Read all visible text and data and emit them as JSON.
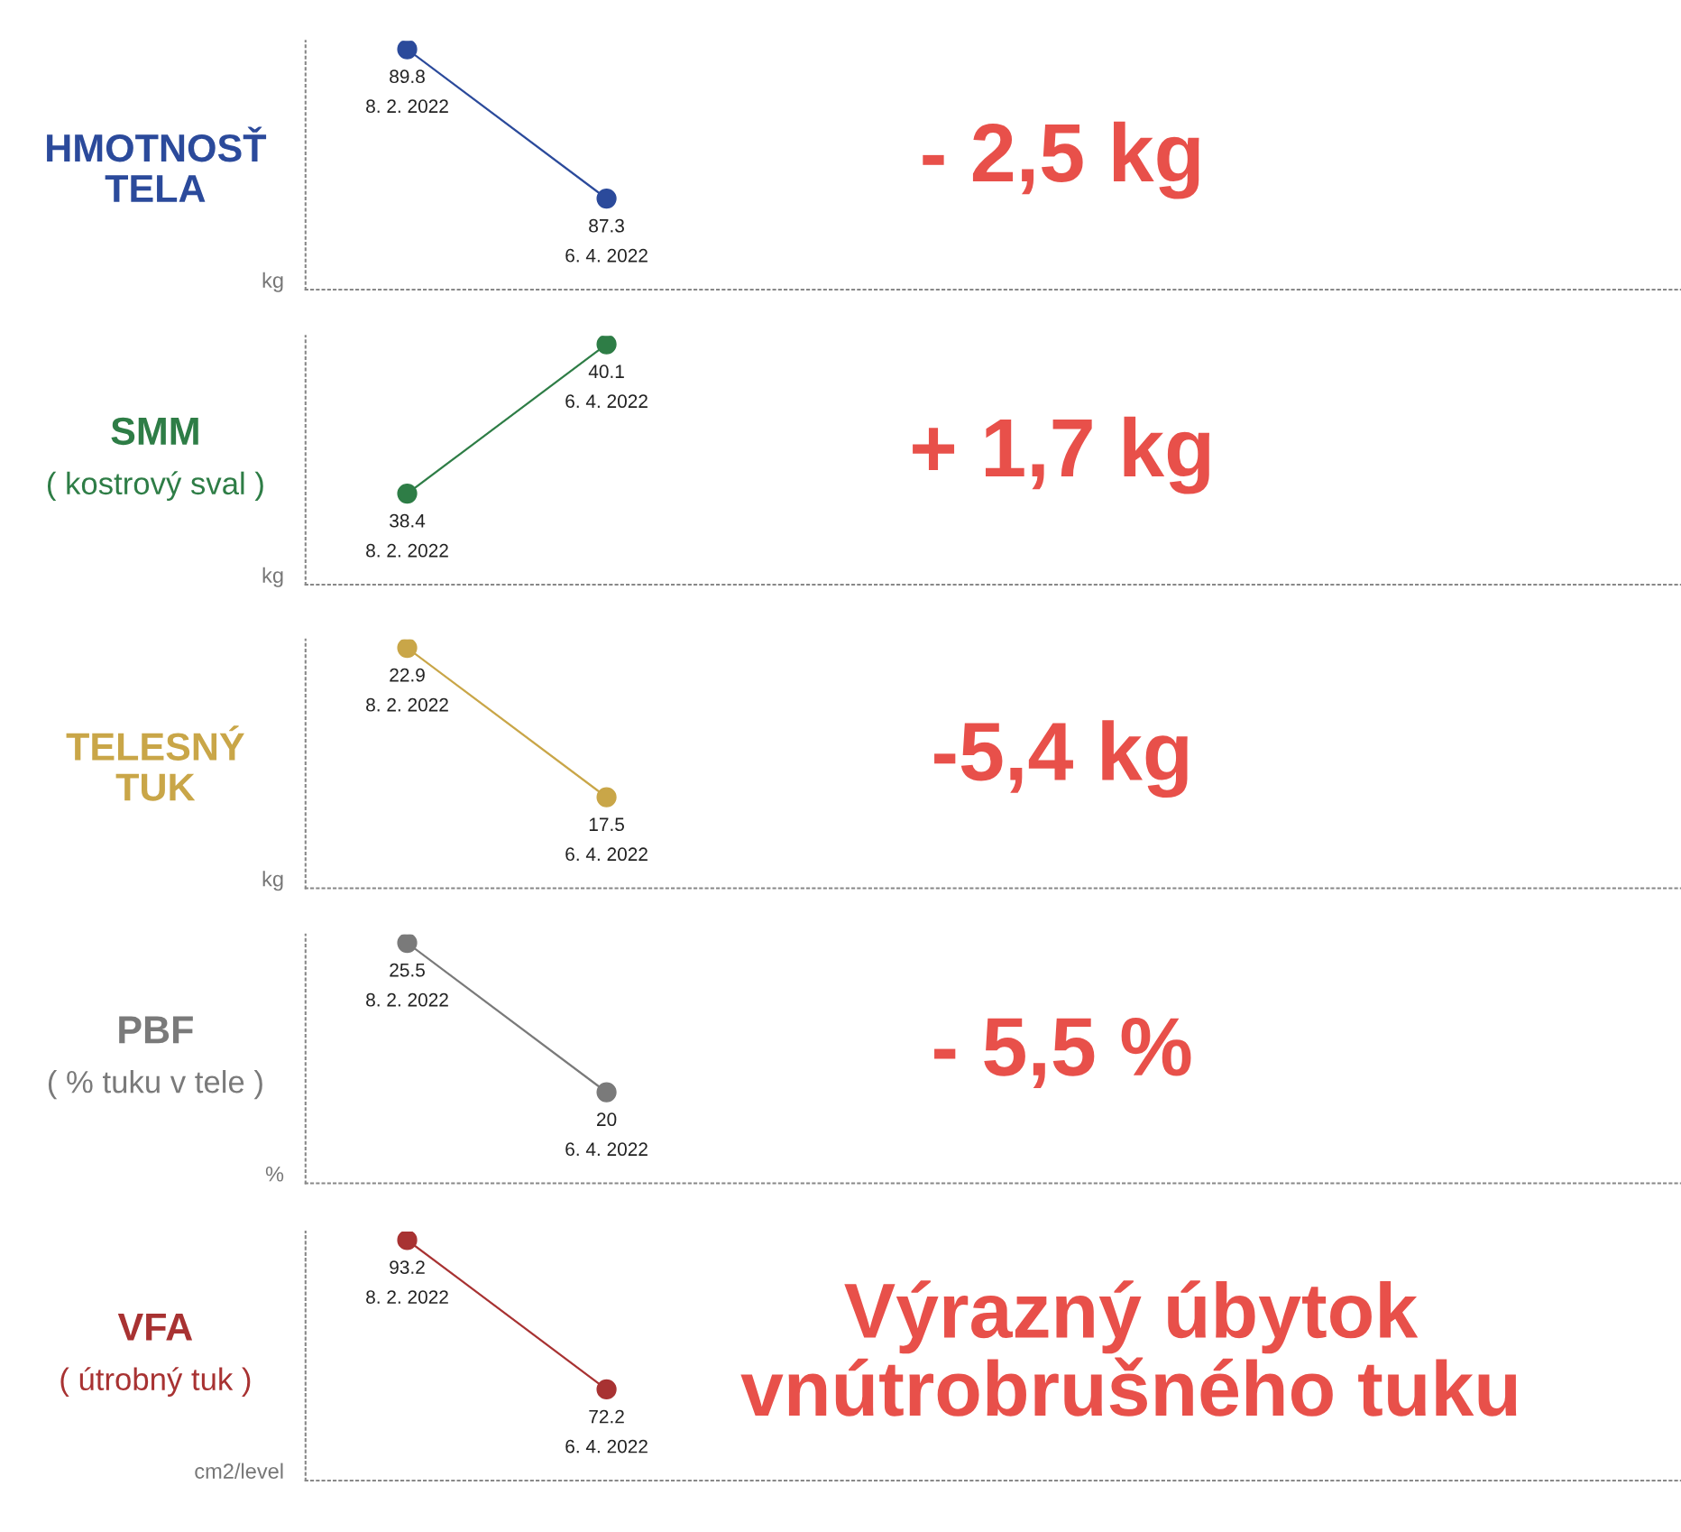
{
  "chart_data": [
    {
      "type": "line",
      "title": "HMOTNOSŤ\nTELA",
      "ylabel": "kg",
      "categories": [
        null,
        null
      ],
      "marker": "circle",
      "series": [
        {
          "color": "#2b4a9b",
          "values": [
            89.8,
            87.3
          ],
          "value_labels": [
            "89.8\n8. 2. 2022",
            "87.3\n6. 4. 2022"
          ]
        }
      ],
      "annotations": [
        "- 2,5 kg"
      ]
    },
    {
      "type": "line",
      "title": "SMM",
      "subtitle": "( kostrový sval )",
      "ylabel": "kg",
      "categories": [
        null,
        null
      ],
      "marker": "circle",
      "series": [
        {
          "color": "#2e7d46",
          "values": [
            38.4,
            40.1
          ],
          "value_labels": [
            "38.4\n8. 2. 2022",
            "40.1\n6. 4. 2022"
          ]
        }
      ],
      "annotations": [
        "+ 1,7 kg"
      ]
    },
    {
      "type": "line",
      "title": "TELESNÝ\nTUK",
      "ylabel": "kg",
      "categories": [
        null,
        null
      ],
      "marker": "circle",
      "series": [
        {
          "color": "#c9a648",
          "values": [
            22.9,
            17.5
          ],
          "value_labels": [
            "22.9\n8. 2. 2022",
            "17.5\n6. 4. 2022"
          ]
        }
      ],
      "annotations": [
        "-5,4 kg"
      ]
    },
    {
      "type": "line",
      "title": "PBF",
      "subtitle": "( % tuku v tele )",
      "ylabel": "%",
      "categories": [
        null,
        null
      ],
      "marker": "circle",
      "series": [
        {
          "color": "#7a7a7a",
          "values": [
            25.5,
            20
          ],
          "value_labels": [
            "25.5\n8. 2. 2022",
            "20\n6. 4. 2022"
          ]
        }
      ],
      "annotations": [
        "- 5,5 %"
      ]
    },
    {
      "type": "line",
      "title": "VFA",
      "subtitle": "( útrobný tuk )",
      "ylabel": "cm2/level",
      "categories": [
        null,
        null
      ],
      "marker": "circle",
      "series": [
        {
          "color": "#a83232",
          "values": [
            93.2,
            72.2
          ],
          "value_labels": [
            "93.2\n8. 2. 2022",
            "72.2\n6. 4. 2022"
          ]
        }
      ],
      "annotations": [
        "Výrazný úbytok\nvnútrobrušného tuku"
      ]
    }
  ]
}
